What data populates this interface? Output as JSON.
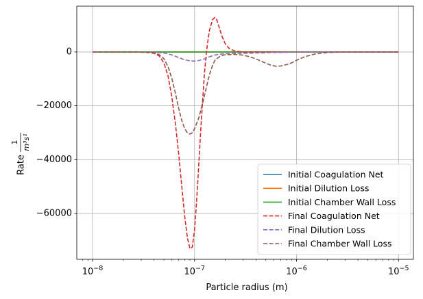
{
  "chart_data": {
    "type": "line",
    "title": "",
    "xlabel": "Particle radius (m)",
    "ylabel": {
      "prefix": "Rate",
      "numerator": "1",
      "denominator": "m³s¹"
    },
    "x_scale": "log",
    "xlim": [
      7e-09,
      1.4e-05
    ],
    "ylim": [
      -77000,
      17000
    ],
    "x_ticks": [
      {
        "value": 1e-08,
        "base": "10",
        "exp": "−8"
      },
      {
        "value": 1e-07,
        "base": "10",
        "exp": "−7"
      },
      {
        "value": 1e-06,
        "base": "10",
        "exp": "−6"
      },
      {
        "value": 1e-05,
        "base": "10",
        "exp": "−5"
      }
    ],
    "y_ticks": [
      {
        "value": 0,
        "label": "0"
      },
      {
        "value": -20000,
        "label": "−20000"
      },
      {
        "value": -40000,
        "label": "−40000"
      },
      {
        "value": -60000,
        "label": "−60000"
      }
    ],
    "grid": true,
    "legend_position": "lower-right",
    "series": [
      {
        "name": "Initial Coagulation Net",
        "color": "#1f77b4",
        "dash": "solid",
        "points": [
          [
            1e-08,
            0
          ],
          [
            1e-05,
            0
          ]
        ]
      },
      {
        "name": "Initial Dilution Loss",
        "color": "#ff7f0e",
        "dash": "solid",
        "points": [
          [
            1e-08,
            0
          ],
          [
            1e-05,
            0
          ]
        ]
      },
      {
        "name": "Initial Chamber Wall Loss",
        "color": "#2ca02c",
        "dash": "solid",
        "points": [
          [
            1e-08,
            0
          ],
          [
            1e-05,
            0
          ]
        ]
      },
      {
        "name": "Final Coagulation Net",
        "color": "#d62728",
        "dash": "dashed",
        "points": [
          [
            1e-08,
            0
          ],
          [
            2.5e-08,
            0
          ],
          [
            3.5e-08,
            -200
          ],
          [
            4e-08,
            -500
          ],
          [
            4.5e-08,
            -1500
          ],
          [
            5e-08,
            -4000
          ],
          [
            5.5e-08,
            -9000
          ],
          [
            6e-08,
            -17000
          ],
          [
            6.5e-08,
            -27000
          ],
          [
            7e-08,
            -38000
          ],
          [
            7.5e-08,
            -50000
          ],
          [
            8e-08,
            -61000
          ],
          [
            8.5e-08,
            -69000
          ],
          [
            9e-08,
            -73000
          ],
          [
            9.5e-08,
            -72500
          ],
          [
            1e-07,
            -66000
          ],
          [
            1.05e-07,
            -55000
          ],
          [
            1.1e-07,
            -42000
          ],
          [
            1.15e-07,
            -29000
          ],
          [
            1.2e-07,
            -18000
          ],
          [
            1.25e-07,
            -8000
          ],
          [
            1.3e-07,
            -1000
          ],
          [
            1.35e-07,
            4000
          ],
          [
            1.4e-07,
            8000
          ],
          [
            1.5e-07,
            12000
          ],
          [
            1.58e-07,
            12800
          ],
          [
            1.65e-07,
            12000
          ],
          [
            1.75e-07,
            9000
          ],
          [
            1.85e-07,
            6000
          ],
          [
            2e-07,
            3000
          ],
          [
            2.2e-07,
            1200
          ],
          [
            2.5e-07,
            300
          ],
          [
            3e-07,
            0
          ],
          [
            1e-05,
            0
          ]
        ]
      },
      {
        "name": "Final Dilution Loss",
        "color": "#9467bd",
        "dash": "dashed",
        "points": [
          [
            1e-08,
            0
          ],
          [
            4e-08,
            -100
          ],
          [
            5e-08,
            -400
          ],
          [
            6e-08,
            -1100
          ],
          [
            7e-08,
            -2100
          ],
          [
            8e-08,
            -2900
          ],
          [
            9e-08,
            -3300
          ],
          [
            1e-07,
            -3400
          ],
          [
            1.1e-07,
            -3200
          ],
          [
            1.25e-07,
            -2600
          ],
          [
            1.4e-07,
            -1800
          ],
          [
            1.6e-07,
            -1100
          ],
          [
            2e-07,
            -600
          ],
          [
            2.5e-07,
            -500
          ],
          [
            3e-07,
            -500
          ],
          [
            4e-07,
            -400
          ],
          [
            6e-07,
            -200
          ],
          [
            1e-06,
            -50
          ],
          [
            1.5e-06,
            0
          ],
          [
            1e-05,
            0
          ]
        ]
      },
      {
        "name": "Final Chamber Wall Loss",
        "color": "#8c564b",
        "dash": "dashed",
        "points": [
          [
            1e-08,
            0
          ],
          [
            3.5e-08,
            -100
          ],
          [
            4e-08,
            -300
          ],
          [
            4.5e-08,
            -1000
          ],
          [
            5e-08,
            -2500
          ],
          [
            5.5e-08,
            -5500
          ],
          [
            6e-08,
            -10000
          ],
          [
            6.5e-08,
            -15500
          ],
          [
            7e-08,
            -21000
          ],
          [
            7.5e-08,
            -25500
          ],
          [
            8e-08,
            -28500
          ],
          [
            8.5e-08,
            -30000
          ],
          [
            9e-08,
            -30500
          ],
          [
            9.5e-08,
            -30000
          ],
          [
            1e-07,
            -28500
          ],
          [
            1.1e-07,
            -24500
          ],
          [
            1.2e-07,
            -19000
          ],
          [
            1.3e-07,
            -13500
          ],
          [
            1.4e-07,
            -8500
          ],
          [
            1.5e-07,
            -5000
          ],
          [
            1.6e-07,
            -2800
          ],
          [
            1.8e-07,
            -1500
          ],
          [
            2e-07,
            -1000
          ],
          [
            2.5e-07,
            -900
          ],
          [
            3e-07,
            -1200
          ],
          [
            3.5e-07,
            -1800
          ],
          [
            4e-07,
            -2600
          ],
          [
            4.5e-07,
            -3400
          ],
          [
            5e-07,
            -4200
          ],
          [
            5.5e-07,
            -4800
          ],
          [
            6.3e-07,
            -5300
          ],
          [
            7e-07,
            -5200
          ],
          [
            8e-07,
            -4700
          ],
          [
            9e-07,
            -4000
          ],
          [
            1e-06,
            -3100
          ],
          [
            1.2e-06,
            -1800
          ],
          [
            1.5e-06,
            -800
          ],
          [
            2e-06,
            -200
          ],
          [
            3e-06,
            0
          ],
          [
            1e-05,
            0
          ]
        ]
      }
    ]
  }
}
